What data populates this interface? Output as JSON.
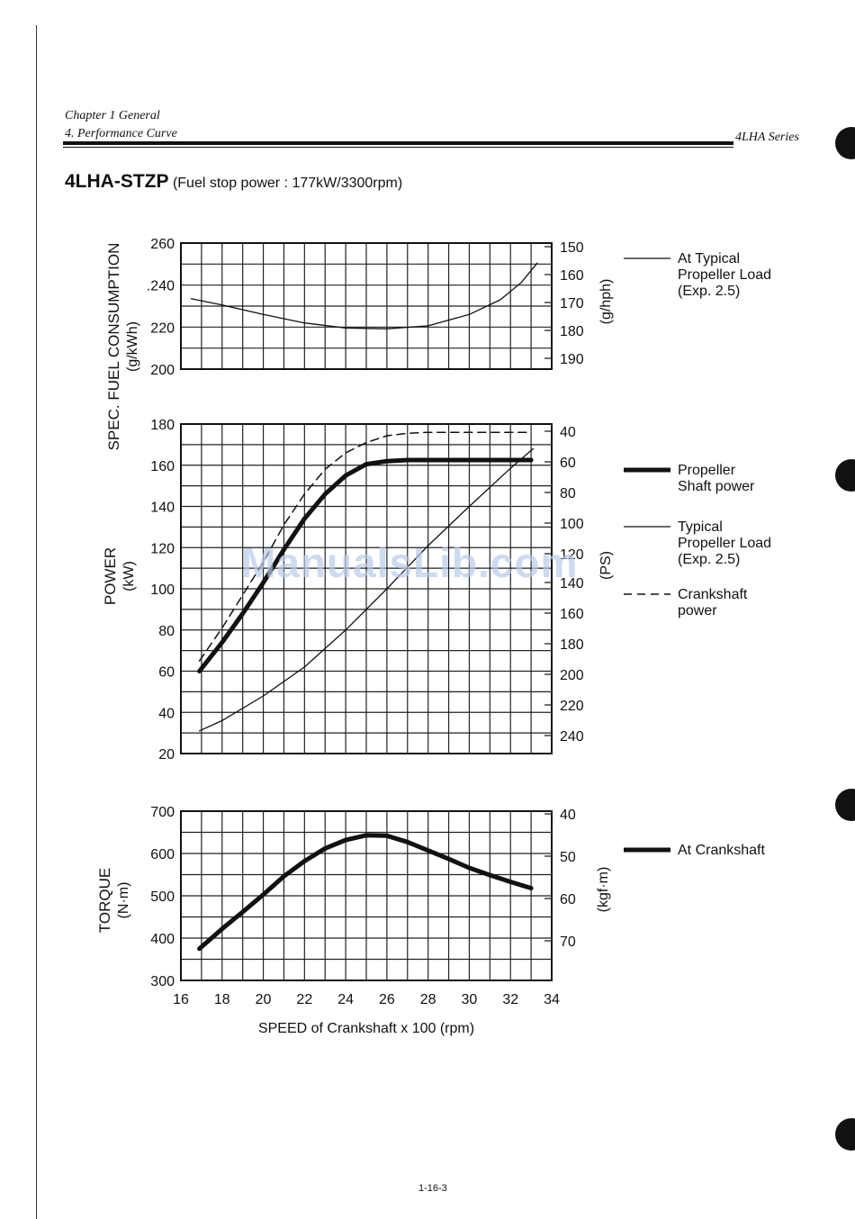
{
  "header": {
    "chapter": "Chapter 1 General",
    "section": "4. Performance Curve",
    "series": "4LHA Series"
  },
  "title": {
    "model": "4LHA-STZP",
    "subtitle": "(Fuel stop power : 177kW/3300rpm)"
  },
  "watermark": "ManualsLib.com",
  "page_number": "1-16-3",
  "colors": {
    "ink": "#111111",
    "watermark": "#b9cbea"
  },
  "chart_data": [
    {
      "type": "line",
      "id": "fuel",
      "title": "",
      "xlabel": "",
      "ylabel": "SPEC. FUEL CONSUMPTION",
      "ylabel_unit": "(g/kWh)",
      "xlim": [
        16,
        34
      ],
      "ylim": [
        200,
        260
      ],
      "yticks": [
        "200",
        "220",
        "240",
        "260"
      ],
      "ytick_labels": [
        "200",
        "220",
        ".240",
        "260"
      ],
      "y2label": "(g/hph)",
      "y2ticks": [
        "150",
        "160",
        "170",
        "180",
        "190"
      ],
      "series": [
        {
          "name": "At Typical Propeller Load (Exp. 2.5)",
          "style": "thin",
          "x": [
            16.5,
            18,
            20,
            22,
            24,
            26,
            28,
            30,
            31.5,
            32.5,
            33.3
          ],
          "y": [
            233.5,
            230.5,
            226,
            222,
            219.6,
            219.2,
            220.6,
            226,
            233,
            241,
            250.5
          ]
        }
      ]
    },
    {
      "type": "line",
      "id": "power",
      "title": "",
      "xlabel": "",
      "ylabel": "POWER",
      "ylabel_unit": "(kW)",
      "xlim": [
        16,
        34
      ],
      "ylim": [
        20,
        180
      ],
      "yticks": [
        "20",
        "40",
        "60",
        "80",
        "100",
        "120",
        "140",
        "160",
        "180"
      ],
      "y2label": "(PS)",
      "y2ticks": [
        "40",
        "60",
        "80",
        "100",
        "120",
        "140",
        "160",
        "180",
        "200",
        "220",
        "240"
      ],
      "series": [
        {
          "name": "Propeller Shaft power",
          "style": "thick",
          "x": [
            16.9,
            18,
            19,
            20,
            21,
            22,
            23,
            24,
            25,
            26,
            27,
            28,
            29,
            30,
            31,
            32,
            33
          ],
          "y": [
            60,
            74,
            88,
            103,
            119,
            134,
            146,
            155,
            160.5,
            162,
            162.5,
            162.5,
            162.5,
            162.5,
            162.5,
            162.5,
            162.5
          ]
        },
        {
          "name": "Typical Propeller Load (Exp. 2.5)",
          "style": "thin",
          "x": [
            16.9,
            18,
            20,
            22,
            24,
            26,
            28,
            30,
            32,
            33.1
          ],
          "y": [
            31,
            36,
            48,
            62,
            80,
            100,
            121,
            140,
            158.5,
            168
          ]
        },
        {
          "name": "Crankshaft power",
          "style": "dashed",
          "x": [
            16.9,
            18,
            19,
            20,
            21,
            22,
            23,
            24,
            25,
            26,
            27,
            28,
            29,
            30,
            31,
            32,
            33
          ],
          "y": [
            65,
            81,
            97,
            113,
            131,
            146,
            158,
            166,
            171,
            174.3,
            175.5,
            176,
            176,
            176,
            176,
            176,
            176
          ]
        }
      ]
    },
    {
      "type": "line",
      "id": "torque",
      "title": "",
      "xlabel": "SPEED of Crankshaft  x 100  (rpm)",
      "ylabel": "TORQUE",
      "ylabel_unit": "(N·m)",
      "xlim": [
        16,
        34
      ],
      "ylim": [
        300,
        700
      ],
      "xticks": [
        "16",
        "18",
        "20",
        "22",
        "24",
        "26",
        "28",
        "30",
        "32",
        "34"
      ],
      "yticks": [
        "300",
        "400",
        "500",
        "600",
        "700"
      ],
      "y2label": "(kgf·m)",
      "y2ticks": [
        "40",
        "50",
        "60",
        "70"
      ],
      "series": [
        {
          "name": "At Crankshaft",
          "style": "thick",
          "x": [
            16.9,
            18,
            19,
            20,
            21,
            22,
            23,
            24,
            25,
            26,
            27,
            28,
            29,
            30,
            31,
            32,
            33
          ],
          "y": [
            375,
            422,
            462,
            503,
            546,
            582,
            612,
            632,
            643,
            642,
            627,
            607,
            587,
            566,
            549,
            533,
            518
          ]
        }
      ]
    }
  ],
  "legend": [
    {
      "text": "At Typical Propeller Load (Exp. 2.5)",
      "lines": [
        "At Typical",
        "Propeller Load",
        "(Exp. 2.5)"
      ],
      "style": "thin"
    },
    {
      "text": "Propeller Shaft power",
      "lines": [
        "Propeller",
        "Shaft power"
      ],
      "style": "thick"
    },
    {
      "text": "Typical Propeller Load (Exp. 2.5)",
      "lines": [
        "Typical",
        "Propeller Load",
        "(Exp. 2.5)"
      ],
      "style": "thin"
    },
    {
      "text": "Crankshaft power",
      "lines": [
        "Crankshaft",
        "power"
      ],
      "style": "dashed"
    },
    {
      "text": "At Crankshaft",
      "lines": [
        "At Crankshaft"
      ],
      "style": "thick"
    }
  ]
}
